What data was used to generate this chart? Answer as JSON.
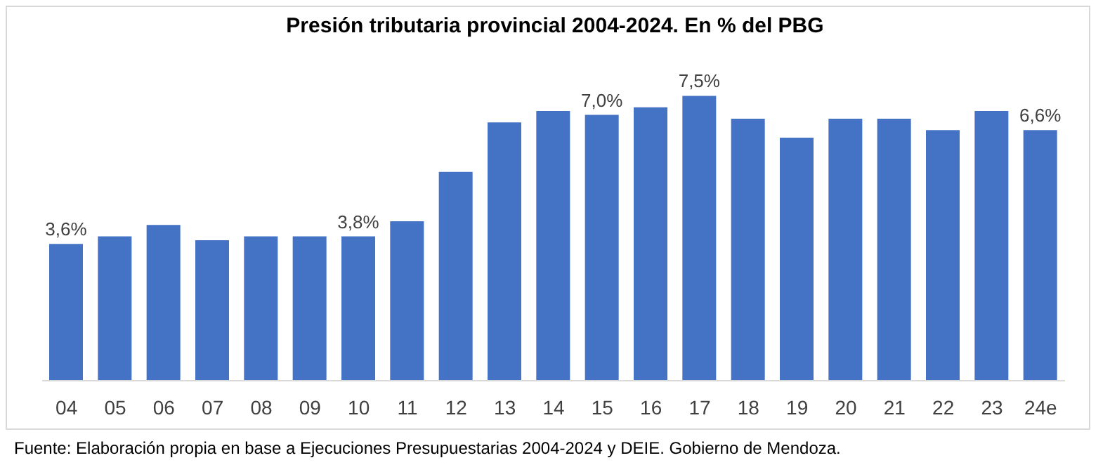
{
  "chart_data": {
    "type": "bar",
    "title": "Presión tributaria provincial 2004-2024. En % del PBG",
    "categories": [
      "04",
      "05",
      "06",
      "07",
      "08",
      "09",
      "10",
      "11",
      "12",
      "13",
      "14",
      "15",
      "16",
      "17",
      "18",
      "19",
      "20",
      "21",
      "22",
      "23",
      "24e"
    ],
    "values": [
      3.6,
      3.8,
      4.1,
      3.7,
      3.8,
      3.8,
      3.8,
      4.2,
      5.5,
      6.8,
      7.1,
      7.0,
      7.2,
      7.5,
      6.9,
      6.4,
      6.9,
      6.9,
      6.6,
      7.1,
      6.6
    ],
    "value_labels": [
      "3,6%",
      null,
      null,
      null,
      null,
      null,
      "3,8%",
      null,
      null,
      null,
      null,
      "7,0%",
      null,
      "7,5%",
      null,
      null,
      null,
      null,
      null,
      null,
      "6,6%"
    ],
    "color": "#4472c4",
    "annotations": [
      "Fuente: Elaboración propia en base a Ejecuciones Presupuestarias 2004-2024 y DEIE. Gobierno de Mendoza."
    ]
  }
}
